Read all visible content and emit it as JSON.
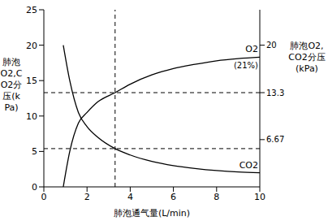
{
  "chart_data": {
    "type": "line",
    "x_label": "肺泡通气量(L/min)",
    "y_label": "肺泡O2,CO2分压(kPa)",
    "y2_label": "肺泡O2,CO2分压(kPa)",
    "x": [
      0.9,
      1.2,
      1.6,
      2,
      2.5,
      3.3,
      4,
      5,
      6,
      7,
      8,
      9,
      10
    ],
    "series": [
      {
        "name": "O2",
        "color": "#000000",
        "axis": "y2",
        "annotation": "(21%)",
        "values": [
          0,
          5,
          9,
          10.5,
          12,
          13.3,
          14.5,
          15.8,
          16.7,
          17.3,
          17.8,
          18.1,
          18.3
        ]
      },
      {
        "name": "CO2",
        "color": "#000000",
        "values": [
          20,
          15,
          10.5,
          8.5,
          7,
          5.4,
          4.5,
          3.6,
          3.0,
          2.6,
          2.3,
          2.1,
          2.0
        ]
      }
    ],
    "xlim": [
      0,
      10
    ],
    "xticks": [
      0,
      2,
      4,
      6,
      8,
      10
    ],
    "ylim": [
      0,
      25
    ],
    "yticks": [
      0,
      5,
      10,
      15,
      20,
      25
    ],
    "y2lim": [
      0,
      25
    ],
    "y2ticks": [
      6.67,
      13.3,
      20
    ],
    "reference_lines": {
      "x": [
        3.3
      ],
      "y": [
        13.3,
        5.4
      ]
    },
    "grid": false
  }
}
